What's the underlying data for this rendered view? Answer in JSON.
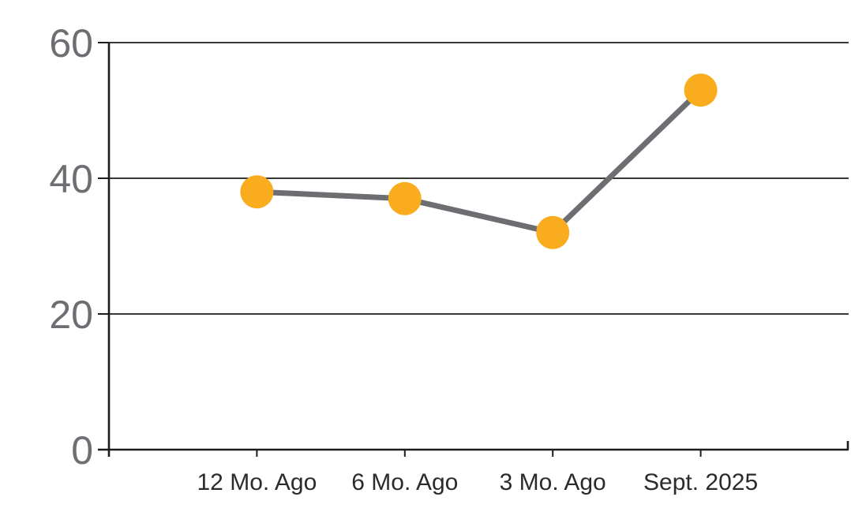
{
  "chart_data": {
    "type": "line",
    "categories": [
      "12 Mo. Ago",
      "6 Mo. Ago",
      "3 Mo. Ago",
      "Sept. 2025"
    ],
    "values": [
      38,
      37,
      32,
      53
    ],
    "yticks": [
      0,
      20,
      40,
      60
    ],
    "ylim": [
      0,
      60
    ],
    "grid": "horizontal",
    "legend_position": "none",
    "marker_color": "#F9AD1E",
    "line_color": "#6D6E71",
    "axis_color": "#1C1C1E",
    "ytick_label_color": "#6D6E71",
    "xtick_label_color": "#2B2B2D",
    "background_color": "#FFFFFF"
  }
}
